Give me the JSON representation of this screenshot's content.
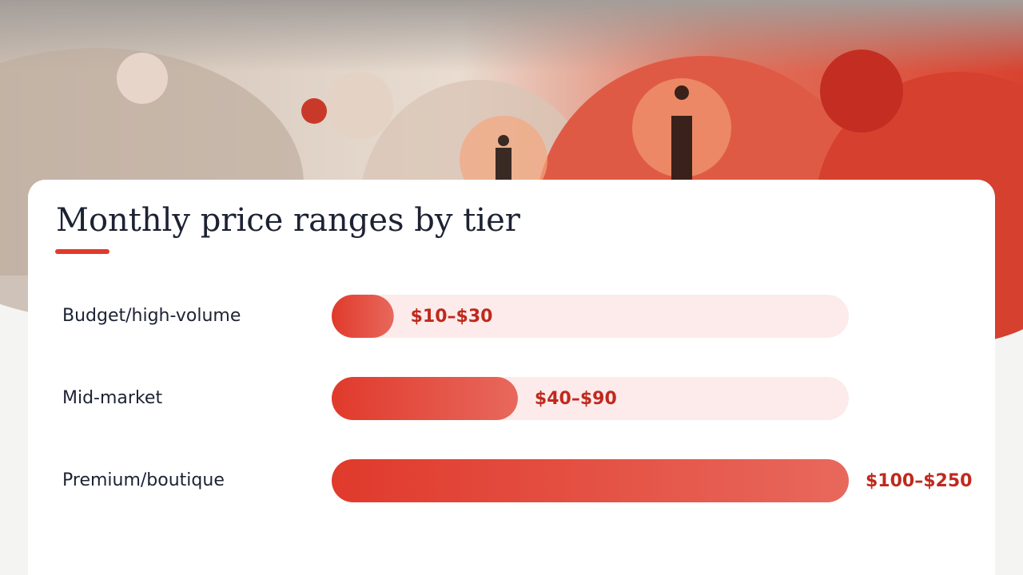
{
  "chart_data": {
    "type": "bar",
    "orientation": "horizontal",
    "title": "Monthly price ranges by tier",
    "categories": [
      "Budget/high-volume",
      "Mid-market",
      "Premium/boutique"
    ],
    "values": [
      30,
      90,
      250
    ],
    "value_labels": [
      "$10–$30",
      "$40–$90",
      "$100–$250"
    ],
    "color": "#e03a2c",
    "xlim": [
      0,
      250
    ]
  }
}
